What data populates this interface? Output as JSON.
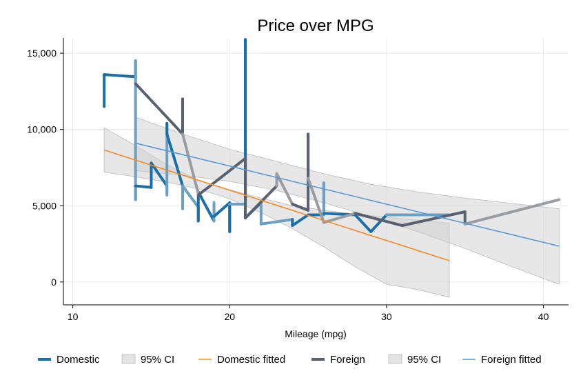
{
  "chart_data": {
    "type": "line",
    "title": "Price over MPG",
    "xlabel": "Mileage (mpg)",
    "ylabel": "",
    "xlim": [
      9.4,
      41.6
    ],
    "ylim": [
      -1500,
      16000
    ],
    "xticks": [
      10,
      20,
      30,
      40
    ],
    "yticks": [
      0,
      5000,
      10000,
      15000
    ],
    "xtick_labels": [
      "10",
      "20",
      "30",
      "40"
    ],
    "ytick_labels": [
      "0",
      "5,000",
      "10,000",
      "15,000"
    ],
    "grid": true,
    "legend_position": "bottom",
    "series": [
      {
        "name": "Domestic",
        "kind": "line",
        "color": "#1a6fa6",
        "color_alt": "#6c9fc4",
        "points": [
          [
            12,
            11500
          ],
          [
            12,
            13600
          ],
          [
            14,
            13450
          ],
          [
            14,
            14500
          ],
          [
            14,
            5400
          ],
          [
            14,
            6300
          ],
          [
            15,
            6200
          ],
          [
            15,
            7800
          ],
          [
            16,
            6300
          ],
          [
            16,
            5700
          ],
          [
            16,
            10400
          ],
          [
            16,
            9700
          ],
          [
            17,
            6300
          ],
          [
            17,
            4800
          ],
          [
            17,
            6300
          ],
          [
            18,
            4900
          ],
          [
            18,
            4000
          ],
          [
            18,
            5900
          ],
          [
            19,
            4000
          ],
          [
            19,
            5200
          ],
          [
            19,
            4300
          ],
          [
            20,
            5200
          ],
          [
            20,
            3300
          ],
          [
            20,
            5100
          ],
          [
            21,
            5100
          ],
          [
            21,
            8800
          ],
          [
            21,
            15900
          ],
          [
            21,
            4200
          ],
          [
            22,
            5200
          ],
          [
            22,
            3800
          ],
          [
            24,
            4100
          ],
          [
            24,
            3700
          ],
          [
            25,
            4400
          ],
          [
            26,
            4400
          ],
          [
            26,
            6500
          ],
          [
            26,
            4500
          ],
          [
            28,
            4400
          ],
          [
            29,
            3300
          ],
          [
            30,
            4400
          ],
          [
            34,
            4400
          ]
        ]
      },
      {
        "name": "Domestic 95% CI",
        "legend_label": "95% CI",
        "kind": "band",
        "color": "#d0d0d0",
        "x": [
          12,
          14,
          16,
          18,
          20,
          22,
          24,
          26,
          28,
          30,
          32,
          34
        ],
        "lower": [
          7200,
          6900,
          6550,
          6100,
          5450,
          4550,
          3500,
          2300,
          1000,
          -150,
          -500,
          -1000
        ],
        "upper": [
          10100,
          8950,
          7700,
          6650,
          6050,
          5500,
          5000,
          4700,
          4450,
          4250,
          4050,
          3850
        ]
      },
      {
        "name": "Domestic fitted",
        "kind": "line",
        "color": "#f28c28",
        "x": [
          12,
          34
        ],
        "y": [
          8650,
          1400
        ]
      },
      {
        "name": "Foreign",
        "kind": "line",
        "color": "#596170",
        "color_alt": "#999da3",
        "points": [
          [
            14,
            13000
          ],
          [
            17,
            9700
          ],
          [
            17,
            12000
          ],
          [
            17,
            9700
          ],
          [
            18,
            5800
          ],
          [
            18,
            5700
          ],
          [
            21,
            8100
          ],
          [
            21,
            4200
          ],
          [
            23,
            6300
          ],
          [
            23,
            7100
          ],
          [
            24,
            5100
          ],
          [
            25,
            4700
          ],
          [
            25,
            9700
          ],
          [
            25,
            6800
          ],
          [
            26,
            3900
          ],
          [
            28,
            4500
          ],
          [
            31,
            3700
          ],
          [
            35,
            4600
          ],
          [
            35,
            3800
          ],
          [
            41,
            5400
          ]
        ]
      },
      {
        "name": "Foreign 95% CI",
        "legend_label": "95% CI",
        "kind": "band",
        "color": "#d0d0d0",
        "x": [
          14,
          17,
          20,
          23,
          26,
          29,
          32,
          35,
          38,
          41
        ],
        "lower": [
          7300,
          7000,
          6600,
          6000,
          5200,
          4300,
          3300,
          2200,
          1000,
          -150
        ],
        "upper": [
          10800,
          9700,
          8700,
          7900,
          7100,
          6400,
          5900,
          5500,
          5150,
          4800
        ]
      },
      {
        "name": "Foreign fitted",
        "kind": "line",
        "color": "#5b9bd5",
        "x": [
          14,
          41
        ],
        "y": [
          9100,
          2350
        ]
      }
    ]
  }
}
